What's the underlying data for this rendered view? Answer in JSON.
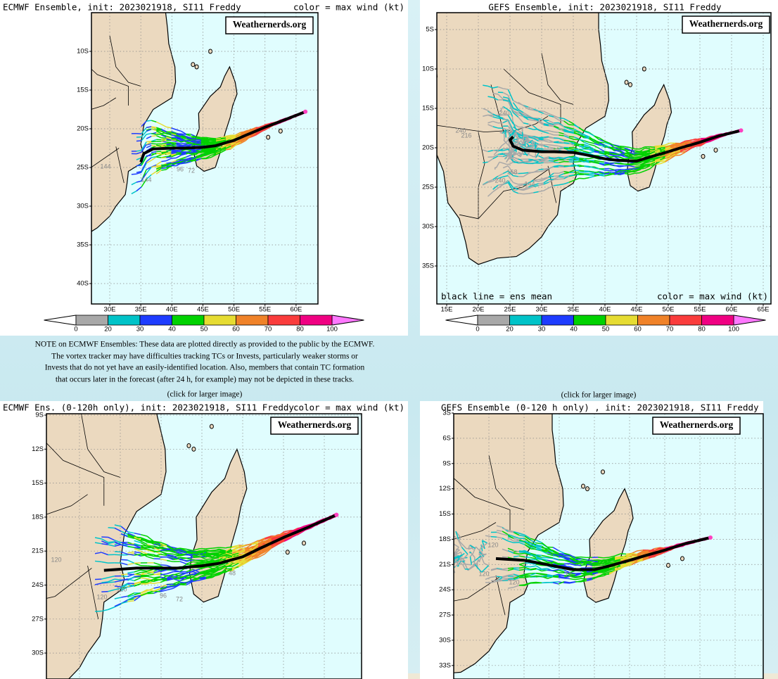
{
  "panels": [
    {
      "title": "ECMWF Ensemble, init: 2023021918, SI11 Freddy",
      "legend_note": "color = max wind (kt)",
      "watermark": "Weathernerds.org",
      "lat_ticks": [
        {
          "value": 10,
          "label": "10S"
        },
        {
          "value": 15,
          "label": "15S"
        },
        {
          "value": 20,
          "label": "20S"
        },
        {
          "value": 25,
          "label": "25S"
        },
        {
          "value": 30,
          "label": "30S"
        },
        {
          "value": 35,
          "label": "35S"
        },
        {
          "value": 40,
          "label": "40S"
        }
      ],
      "lon_ticks": [
        {
          "value": 30,
          "label": "30E"
        },
        {
          "value": 35,
          "label": "35E"
        },
        {
          "value": 40,
          "label": "40E"
        },
        {
          "value": 45,
          "label": "45E"
        },
        {
          "value": 50,
          "label": "50E"
        },
        {
          "value": 55,
          "label": "55E"
        },
        {
          "value": 60,
          "label": "60E"
        }
      ],
      "track_labels": [
        "144",
        "96",
        "72",
        "144"
      ],
      "colorbar_ticks": [
        0,
        20,
        30,
        40,
        50,
        60,
        70,
        80,
        100
      ]
    },
    {
      "title": "GEFS Ensemble, init: 2023021918, SI11 Freddy",
      "mean_note": "black line = ens mean",
      "legend_note": "color = max wind (kt)",
      "watermark": "Weathernerds.org",
      "lat_ticks": [
        {
          "value": 5,
          "label": "5S"
        },
        {
          "value": 10,
          "label": "10S"
        },
        {
          "value": 15,
          "label": "15S"
        },
        {
          "value": 20,
          "label": "20S"
        },
        {
          "value": 25,
          "label": "25S"
        },
        {
          "value": 30,
          "label": "30S"
        },
        {
          "value": 35,
          "label": "35S"
        }
      ],
      "lon_ticks": [
        {
          "value": 15,
          "label": "15E"
        },
        {
          "value": 20,
          "label": "20E"
        },
        {
          "value": 25,
          "label": "25E"
        },
        {
          "value": 30,
          "label": "30E"
        },
        {
          "value": 35,
          "label": "35E"
        },
        {
          "value": 40,
          "label": "40E"
        },
        {
          "value": 45,
          "label": "45E"
        },
        {
          "value": 50,
          "label": "50E"
        },
        {
          "value": 55,
          "label": "55E"
        },
        {
          "value": 60,
          "label": "60E"
        },
        {
          "value": 65,
          "label": "65E"
        }
      ],
      "track_labels": [
        "240",
        "240",
        "216",
        "168",
        "144",
        "240"
      ],
      "colorbar_ticks": [
        0,
        20,
        30,
        40,
        50,
        60,
        70,
        80,
        100
      ]
    },
    {
      "title": "ECMWF Ens. (0-120h only), init: 2023021918, SI11 Freddy",
      "legend_note": "color = max wind (kt)",
      "watermark": "Weathernerds.org",
      "lat_ticks": [
        {
          "value": 9,
          "label": "9S"
        },
        {
          "value": 12,
          "label": "12S"
        },
        {
          "value": 15,
          "label": "15S"
        },
        {
          "value": 18,
          "label": "18S"
        },
        {
          "value": 21,
          "label": "21S"
        },
        {
          "value": 24,
          "label": "24S"
        },
        {
          "value": 27,
          "label": "27S"
        },
        {
          "value": 30,
          "label": "30S"
        }
      ],
      "track_labels": [
        "120",
        "120",
        "120",
        "96",
        "72",
        "48"
      ]
    },
    {
      "title": "GEFS Ensemble (0-120 h only) , init: 2023021918, SI11 Freddy",
      "watermark": "Weathernerds.org",
      "lat_ticks": [
        {
          "value": 3,
          "label": "3S"
        },
        {
          "value": 6,
          "label": "6S"
        },
        {
          "value": 9,
          "label": "9S"
        },
        {
          "value": 12,
          "label": "12S"
        },
        {
          "value": 15,
          "label": "15S"
        },
        {
          "value": 18,
          "label": "18S"
        },
        {
          "value": 21,
          "label": "21S"
        },
        {
          "value": 24,
          "label": "24S"
        },
        {
          "value": 27,
          "label": "27S"
        },
        {
          "value": 30,
          "label": "30S"
        },
        {
          "value": 33,
          "label": "33S"
        }
      ],
      "track_labels": [
        "120",
        "120",
        "120",
        "72"
      ]
    }
  ],
  "colorbar_colors": [
    "#a8a8a8",
    "#00c3c8",
    "#1e3cff",
    "#00d200",
    "#e6dc32",
    "#f08228",
    "#fa3c3c",
    "#f00082"
  ],
  "note": [
    "NOTE on ECMWF Ensembles: These data are plotted directly as provided to the public by the ECMWF.",
    "The vortex tracker may have difficulties tracking TCs or Invests, particularly weaker storms or",
    "Invests that do not yet have an easily-identified location. Also, members that contain TC formation",
    "that occurs later in the forecast (after 24 h, for example) may not be depicted in these tracks."
  ],
  "captions": [
    "(click for larger image)",
    "(click for larger image)"
  ]
}
